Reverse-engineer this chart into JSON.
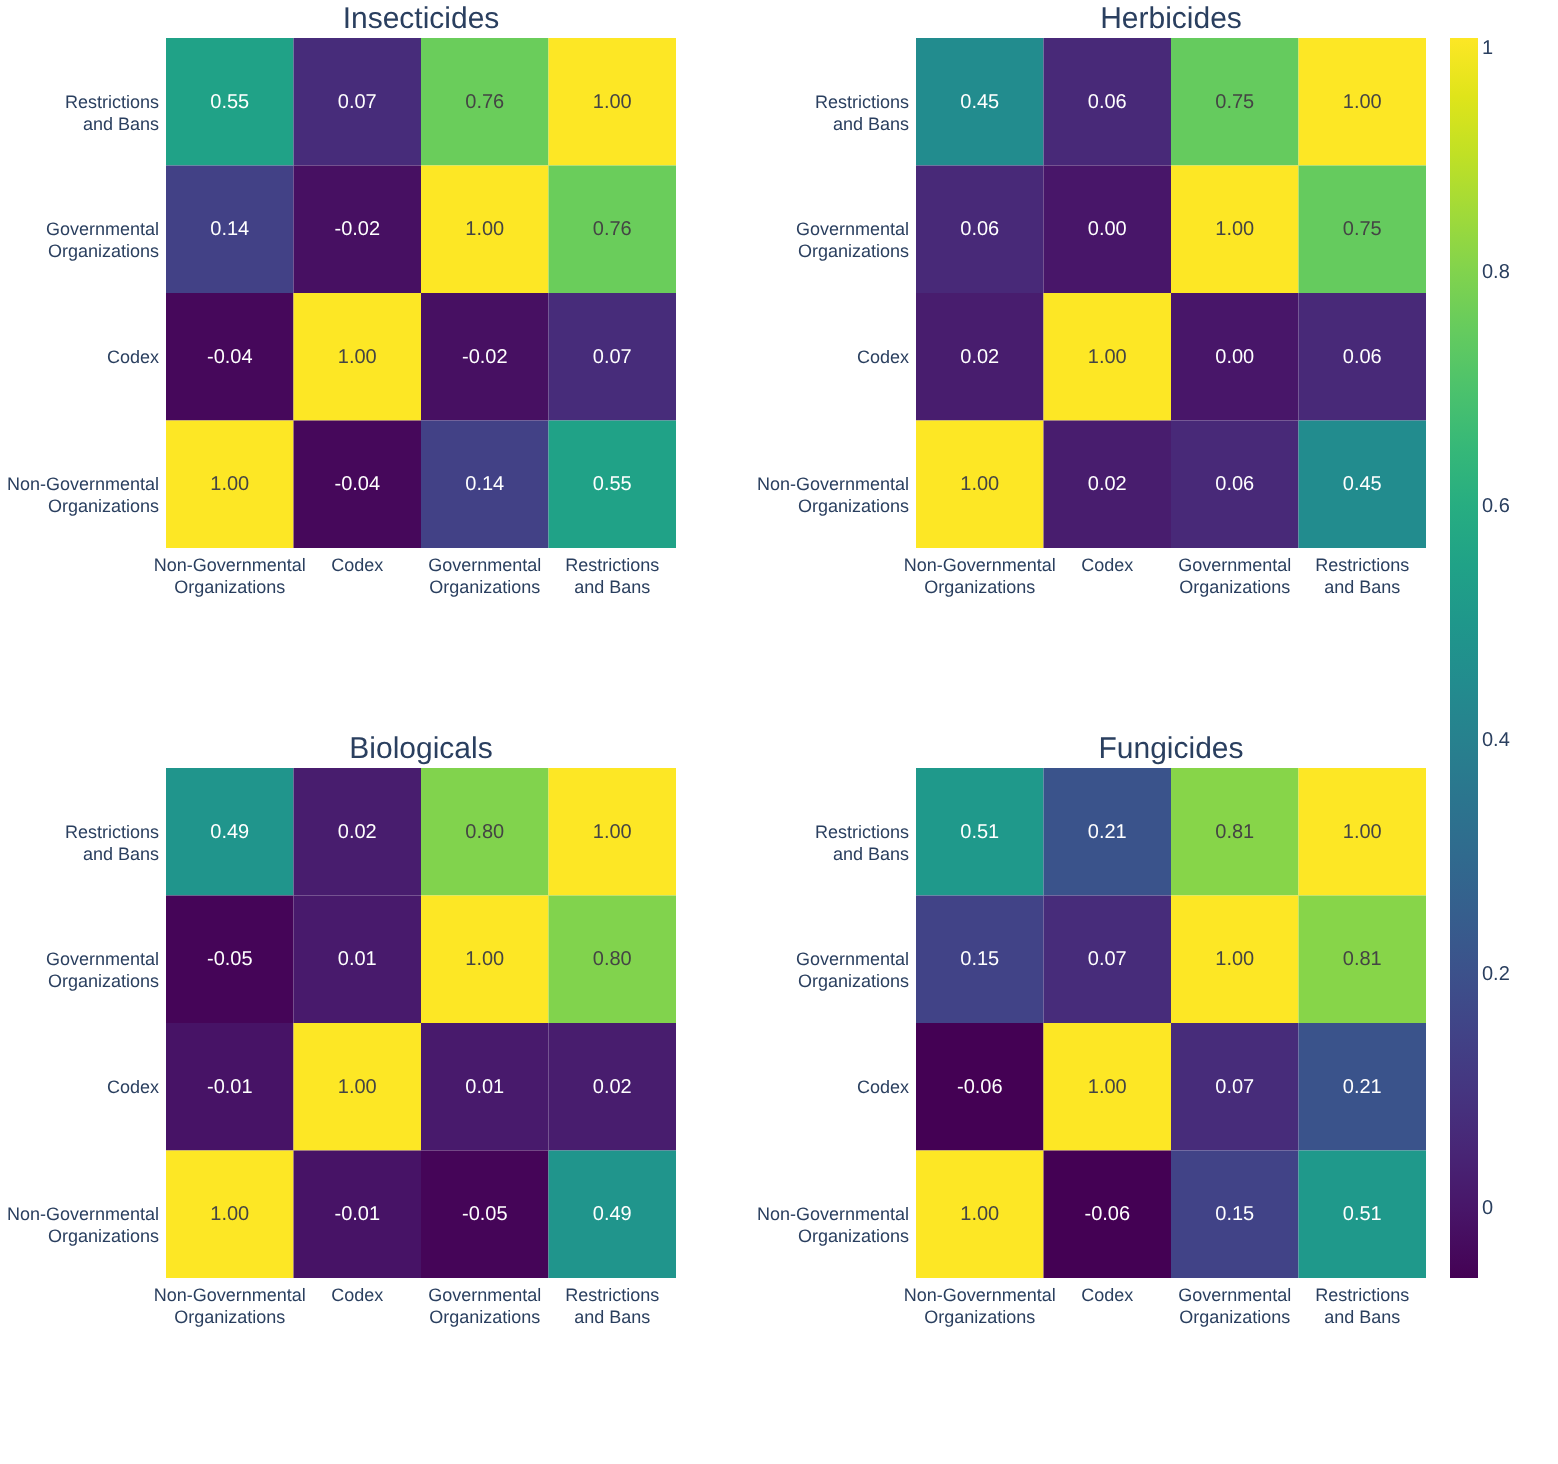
{
  "chart_data": [
    {
      "type": "heatmap",
      "title": "Insecticides",
      "categories": [
        "Non-Governmental\nOrganizations",
        "Codex",
        "Governmental\nOrganizations",
        "Restrictions\nand Bans"
      ],
      "y_categories": [
        "Restrictions\nand Bans",
        "Governmental\nOrganizations",
        "Codex",
        "Non-Governmental\nOrganizations"
      ],
      "cells": [
        [
          0.55,
          0.07,
          0.76,
          1.0
        ],
        [
          0.14,
          -0.02,
          1.0,
          0.76
        ],
        [
          -0.04,
          1.0,
          -0.02,
          0.07
        ],
        [
          1.0,
          -0.04,
          0.14,
          0.55
        ]
      ],
      "cell_labels": [
        [
          "0.55",
          "0.07",
          "0.76",
          "1.00"
        ],
        [
          "0.14",
          "-0.02",
          "1.00",
          "0.76"
        ],
        [
          "-0.04",
          "1.00",
          "-0.02",
          "0.07"
        ],
        [
          "1.00",
          "-0.04",
          "0.14",
          "0.55"
        ]
      ],
      "data_labels": true
    },
    {
      "type": "heatmap",
      "title": "Herbicides",
      "categories": [
        "Non-Governmental\nOrganizations",
        "Codex",
        "Governmental\nOrganizations",
        "Restrictions\nand Bans"
      ],
      "y_categories": [
        "Restrictions\nand Bans",
        "Governmental\nOrganizations",
        "Codex",
        "Non-Governmental\nOrganizations"
      ],
      "cells": [
        [
          0.45,
          0.06,
          0.75,
          1.0
        ],
        [
          0.06,
          0.0,
          1.0,
          0.75
        ],
        [
          0.02,
          1.0,
          0.0,
          0.06
        ],
        [
          1.0,
          0.02,
          0.06,
          0.45
        ]
      ],
      "cell_labels": [
        [
          "0.45",
          "0.06",
          "0.75",
          "1.00"
        ],
        [
          "0.06",
          "0.00",
          "1.00",
          "0.75"
        ],
        [
          "0.02",
          "1.00",
          "0.00",
          "0.06"
        ],
        [
          "1.00",
          "0.02",
          "0.06",
          "0.45"
        ]
      ],
      "data_labels": true,
      "clim": [
        -0.06,
        1
      ],
      "cticks": [
        0,
        0.2,
        0.4,
        0.6,
        0.8,
        1
      ]
    },
    {
      "type": "heatmap",
      "title": "Biologicals",
      "categories": [
        "Non-Governmental\nOrganizations",
        "Codex",
        "Governmental\nOrganizations",
        "Restrictions\nand Bans"
      ],
      "y_categories": [
        "Restrictions\nand Bans",
        "Governmental\nOrganizations",
        "Codex",
        "Non-Governmental\nOrganizations"
      ],
      "cells": [
        [
          0.49,
          0.02,
          0.8,
          1.0
        ],
        [
          -0.05,
          0.01,
          1.0,
          0.8
        ],
        [
          -0.01,
          1.0,
          0.01,
          0.02
        ],
        [
          1.0,
          -0.01,
          -0.05,
          0.49
        ]
      ],
      "cell_labels": [
        [
          "0.49",
          "0.02",
          "0.80",
          "1.00"
        ],
        [
          "-0.05",
          "0.01",
          "1.00",
          "0.80"
        ],
        [
          "-0.01",
          "1.00",
          "0.01",
          "0.02"
        ],
        [
          "1.00",
          "-0.01",
          "-0.05",
          "0.49"
        ]
      ],
      "data_labels": true
    },
    {
      "type": "heatmap",
      "title": "Fungicides",
      "categories": [
        "Non-Governmental\nOrganizations",
        "Codex",
        "Governmental\nOrganizations",
        "Restrictions\nand Bans"
      ],
      "y_categories": [
        "Restrictions\nand Bans",
        "Governmental\nOrganizations",
        "Codex",
        "Non-Governmental\nOrganizations"
      ],
      "cells": [
        [
          0.51,
          0.21,
          0.81,
          1.0
        ],
        [
          0.15,
          0.07,
          1.0,
          0.81
        ],
        [
          -0.06,
          1.0,
          0.07,
          0.21
        ],
        [
          1.0,
          -0.06,
          0.15,
          0.51
        ]
      ],
      "cell_labels": [
        [
          "0.51",
          "0.21",
          "0.81",
          "1.00"
        ],
        [
          "0.15",
          "0.07",
          "1.00",
          "0.81"
        ],
        [
          "-0.06",
          "1.00",
          "0.07",
          "0.21"
        ],
        [
          "1.00",
          "-0.06",
          "0.15",
          "0.51"
        ]
      ],
      "data_labels": true
    }
  ]
}
